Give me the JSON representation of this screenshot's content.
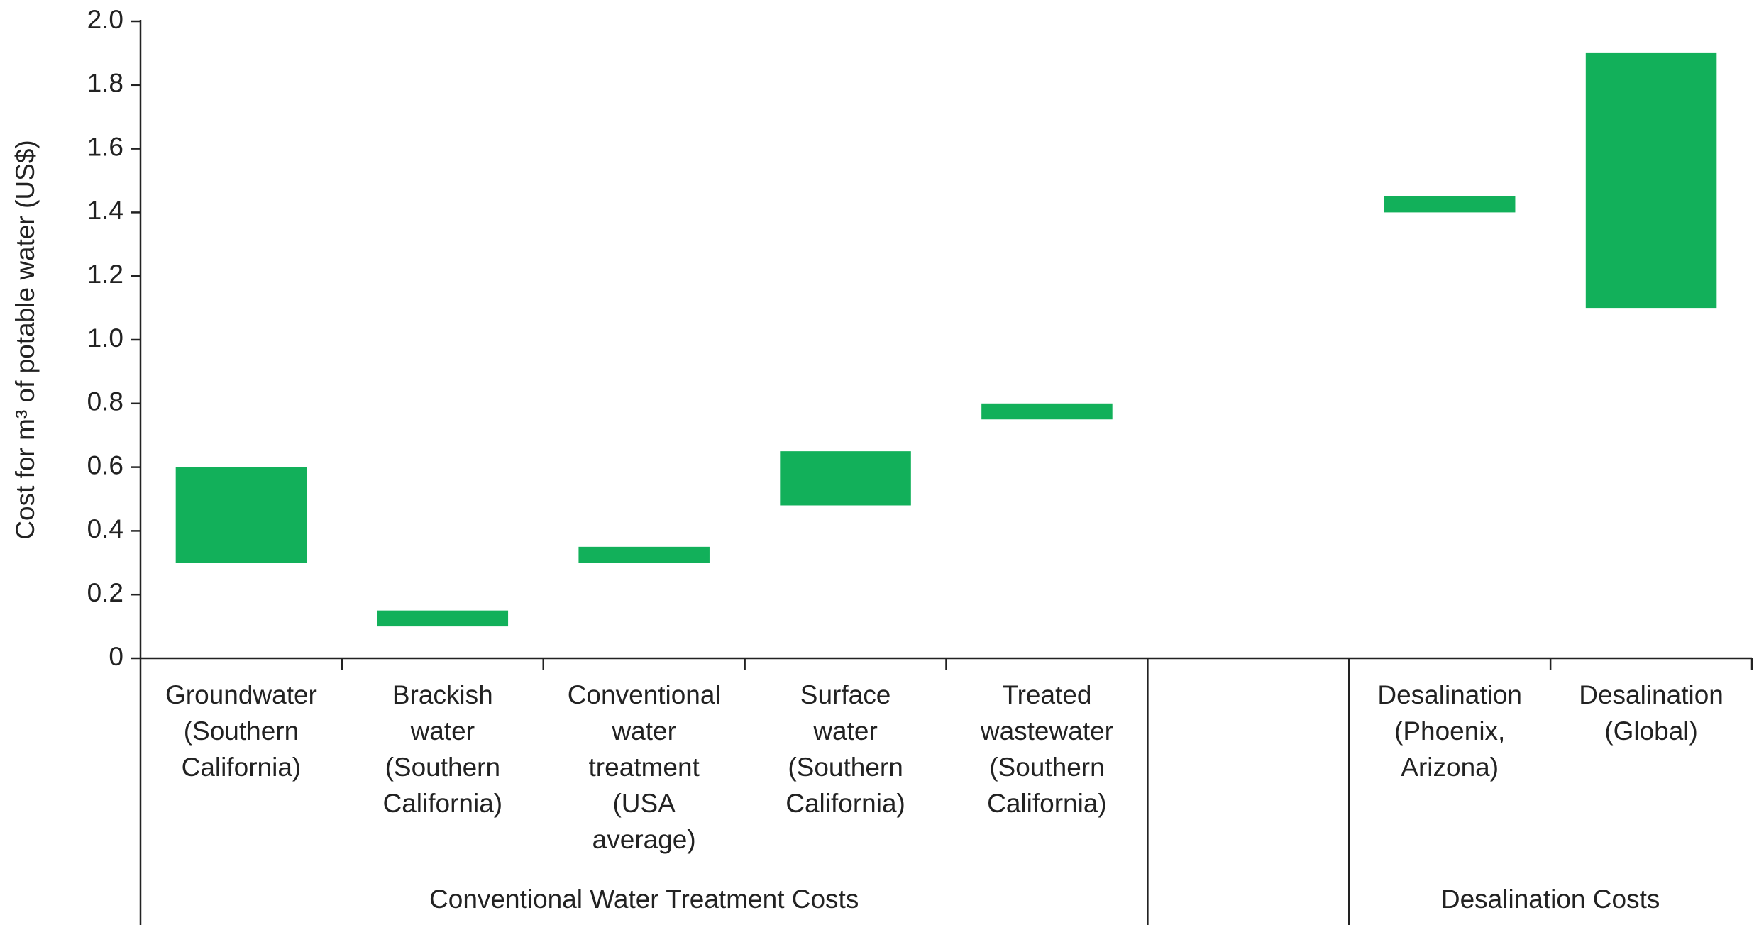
{
  "chart_data": {
    "type": "range-bar",
    "ylabel": "Cost for m³ of potable water (US$)",
    "categories": [
      [
        "Groundwater",
        "(Southern",
        "California)"
      ],
      [
        "Brackish",
        "water",
        "(Southern",
        "California)"
      ],
      [
        "Conventional",
        "water",
        "treatment",
        "(USA",
        "average)"
      ],
      [
        "Surface",
        "water",
        "(Southern",
        "California)"
      ],
      [
        "Treated",
        "wastewater",
        "(Southern",
        "California)"
      ],
      null,
      [
        "Desalination",
        "(Phoenix,",
        "Arizona)"
      ],
      [
        "Desalination",
        "(Global)"
      ]
    ],
    "values": [
      [
        0.3,
        0.6
      ],
      [
        0.1,
        0.15
      ],
      [
        0.3,
        0.35
      ],
      [
        0.48,
        0.65
      ],
      [
        0.75,
        0.8
      ],
      null,
      [
        1.4,
        1.45
      ],
      [
        1.1,
        1.9
      ]
    ],
    "groups": [
      {
        "label": "Conventional Water Treatment Costs",
        "start": 0,
        "end": 4
      },
      {
        "label": "Desalination Costs",
        "start": 6,
        "end": 7
      }
    ],
    "color": "#12b05a",
    "ylim": [
      0,
      2.0
    ],
    "yticks": [
      0,
      0.2,
      0.4,
      0.6,
      0.8,
      {
        "value": 1.0,
        "label": "1.0"
      },
      1.2,
      1.4,
      1.6,
      1.8,
      {
        "value": 2.0,
        "label": "2.0"
      }
    ]
  }
}
